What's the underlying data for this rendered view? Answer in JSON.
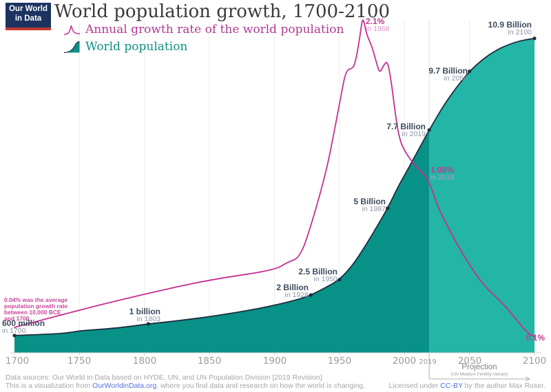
{
  "logo": {
    "line1": "Our World",
    "line2": "in Data"
  },
  "header": {
    "title": "World population growth, 1700-2100"
  },
  "legend": {
    "growth_label": "Annual growth rate of the world population",
    "population_label": "World population"
  },
  "annotations": {
    "growth_note": "0.04% was the average\npopulation growth rate\nbetween 10,000 BCE\nand 1700",
    "p1700": {
      "value": "600 million",
      "year": "in 1700"
    },
    "p1803": {
      "value": "1 billion",
      "year": "in 1803"
    },
    "p1928": {
      "value": "2 Billion",
      "year": "in 1928"
    },
    "p1950": {
      "value": "2.5 Billion",
      "year": "in 1950"
    },
    "p1987": {
      "value": "5 Billion",
      "year": "in 1987"
    },
    "p2019": {
      "value": "7.7 Billion",
      "year": "in 2019"
    },
    "p2050": {
      "value": "9.7 Billion",
      "year": "in 2050"
    },
    "p2100": {
      "value": "10.9 Billion",
      "year": "in 2100"
    },
    "g1968": {
      "value": "2.1%",
      "year": "in 1968"
    },
    "g2019": {
      "value": "1.08%",
      "year": "in 2019"
    },
    "g2100": {
      "value": "0.1%"
    }
  },
  "axis": {
    "ticks": [
      "1700",
      "1750",
      "1800",
      "1850",
      "1900",
      "1950",
      "2000",
      "2050",
      "2100"
    ],
    "special_tick": "2019"
  },
  "projection": {
    "label": "Projection",
    "sublabel": "(UN Medium Fertility Variant)"
  },
  "footer": {
    "line1": "Data sources: Our World in Data based on HYDE, UN, and UN Population Division [2019 Revision]",
    "line2_prefix": "This is a visualization from ",
    "line2_link": "OurWorldinData.org",
    "line2_suffix": ", where you find data and research on how the world is changing.",
    "license_prefix": "Licensed under ",
    "license_link": "CC-BY",
    "license_suffix": " by the author Max Roser."
  },
  "chart_data": {
    "type": "area+line",
    "title": "World population growth, 1700-2100",
    "x_range": [
      1700,
      2100
    ],
    "grid_years": [
      1750,
      1800,
      1850,
      1900,
      1950,
      2000,
      2050,
      2100
    ],
    "projection_divider_year": 2019,
    "series": [
      {
        "name": "World population",
        "type": "area",
        "unit": "billion people",
        "color_history": "#089187",
        "color_projection": "#23b5a6",
        "outline_color": "#1e2d3e",
        "y_range": [
          0,
          10.9
        ],
        "points": [
          [
            1700,
            0.6
          ],
          [
            1720,
            0.63
          ],
          [
            1740,
            0.68
          ],
          [
            1750,
            0.76
          ],
          [
            1760,
            0.79
          ],
          [
            1780,
            0.86
          ],
          [
            1800,
            0.98
          ],
          [
            1803,
            1.0
          ],
          [
            1820,
            1.08
          ],
          [
            1840,
            1.19
          ],
          [
            1850,
            1.25
          ],
          [
            1870,
            1.39
          ],
          [
            1890,
            1.55
          ],
          [
            1900,
            1.65
          ],
          [
            1910,
            1.75
          ],
          [
            1920,
            1.87
          ],
          [
            1928,
            2.0
          ],
          [
            1940,
            2.27
          ],
          [
            1950,
            2.53
          ],
          [
            1960,
            3.02
          ],
          [
            1970,
            3.7
          ],
          [
            1980,
            4.46
          ],
          [
            1987,
            5.0
          ],
          [
            1995,
            5.74
          ],
          [
            2000,
            6.14
          ],
          [
            2010,
            6.96
          ],
          [
            2019,
            7.71
          ],
          [
            2030,
            8.55
          ],
          [
            2040,
            9.19
          ],
          [
            2050,
            9.74
          ],
          [
            2060,
            10.15
          ],
          [
            2070,
            10.46
          ],
          [
            2080,
            10.67
          ],
          [
            2090,
            10.81
          ],
          [
            2100,
            10.88
          ]
        ]
      },
      {
        "name": "Annual growth rate of the world population",
        "type": "line",
        "unit": "%",
        "color": "#c62f90",
        "y_range": [
          0,
          2.2
        ],
        "points": [
          [
            1700,
            0.16
          ],
          [
            1750,
            0.27
          ],
          [
            1800,
            0.37
          ],
          [
            1850,
            0.46
          ],
          [
            1900,
            0.52
          ],
          [
            1910,
            0.57
          ],
          [
            1920,
            0.6
          ],
          [
            1930,
            0.85
          ],
          [
            1940,
            1.15
          ],
          [
            1945,
            1.35
          ],
          [
            1951,
            1.61
          ],
          [
            1955,
            1.78
          ],
          [
            1960,
            1.79
          ],
          [
            1962,
            1.82
          ],
          [
            1965,
            1.95
          ],
          [
            1967,
            2.07
          ],
          [
            1968,
            2.1
          ],
          [
            1969,
            2.08
          ],
          [
            1971,
            2.0
          ],
          [
            1975,
            1.93
          ],
          [
            1979,
            1.81
          ],
          [
            1981,
            1.76
          ],
          [
            1984,
            1.81
          ],
          [
            1987,
            1.84
          ],
          [
            1990,
            1.7
          ],
          [
            1993,
            1.5
          ],
          [
            1996,
            1.35
          ],
          [
            2000,
            1.27
          ],
          [
            2007,
            1.19
          ],
          [
            2013,
            1.14
          ],
          [
            2019,
            1.08
          ],
          [
            2026,
            0.91
          ],
          [
            2033,
            0.8
          ],
          [
            2040,
            0.69
          ],
          [
            2048,
            0.58
          ],
          [
            2056,
            0.48
          ],
          [
            2064,
            0.4
          ],
          [
            2072,
            0.34
          ],
          [
            2080,
            0.27
          ],
          [
            2088,
            0.19
          ],
          [
            2094,
            0.13
          ],
          [
            2100,
            0.1
          ]
        ]
      }
    ],
    "labeled_points": [
      [
        1700,
        0.6
      ],
      [
        1803,
        1.0
      ],
      [
        1928,
        2.0
      ],
      [
        1950,
        2.53
      ],
      [
        1987,
        5.0
      ],
      [
        2019,
        7.71
      ],
      [
        2050,
        9.74
      ],
      [
        2100,
        10.88
      ]
    ]
  }
}
